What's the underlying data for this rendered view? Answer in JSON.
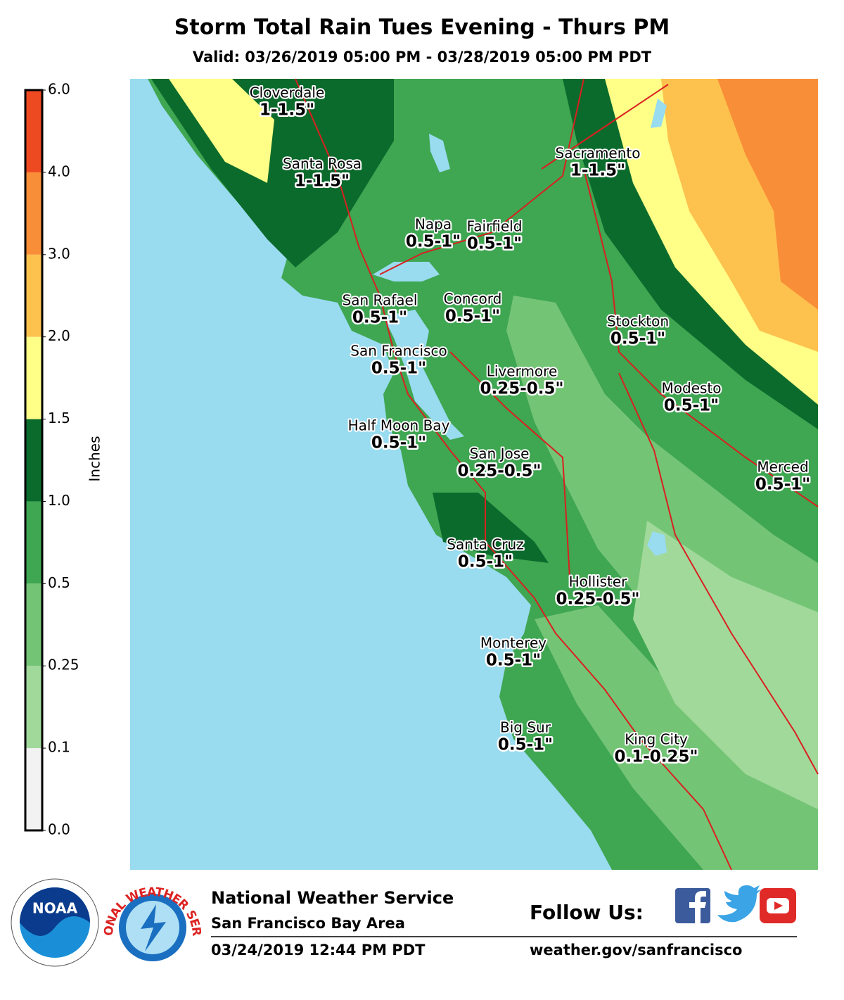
{
  "header": {
    "title": "Storm Total Rain Tues Evening - Thurs PM",
    "subtitle": "Valid: 03/26/2019 05:00 PM - 03/28/2019 05:00 PM PDT"
  },
  "legend": {
    "label": "Inches",
    "ticks": [
      {
        "value": 0,
        "label": "0.0"
      },
      0.1,
      0.25,
      0.5,
      {
        "value": 1,
        "label": "1.0"
      },
      1.5,
      {
        "value": 2,
        "label": "2.0"
      },
      {
        "value": 3,
        "label": "3.0"
      },
      {
        "value": 4,
        "label": "4.0"
      },
      {
        "value": 6,
        "label": "6.0"
      }
    ],
    "colors": [
      "#f2f2f2",
      "#a1d99b",
      "#74c476",
      "#3fa652",
      "#0b6b2c",
      "#ffff88",
      "#fdc24e",
      "#f98e38",
      "#ee4a22"
    ]
  },
  "cities": [
    {
      "name": "Cloverdale",
      "amount": "1-1.5\""
    },
    {
      "name": "Santa Rosa",
      "amount": "1-1.5\""
    },
    {
      "name": "Sacramento",
      "amount": "1-1.5\""
    },
    {
      "name": "Napa",
      "amount": "0.5-1\""
    },
    {
      "name": "Fairfield",
      "amount": "0.5-1\""
    },
    {
      "name": "San Rafael",
      "amount": "0.5-1\""
    },
    {
      "name": "Concord",
      "amount": "0.5-1\""
    },
    {
      "name": "San Francisco",
      "amount": "0.5-1\""
    },
    {
      "name": "Stockton",
      "amount": "0.5-1\""
    },
    {
      "name": "Livermore",
      "amount": "0.25-0.5\""
    },
    {
      "name": "Modesto",
      "amount": "0.5-1\""
    },
    {
      "name": "Half Moon Bay",
      "amount": "0.5-1\""
    },
    {
      "name": "San Jose",
      "amount": "0.25-0.5\""
    },
    {
      "name": "Merced",
      "amount": "0.5-1\""
    },
    {
      "name": "Santa Cruz",
      "amount": "0.5-1\""
    },
    {
      "name": "Hollister",
      "amount": "0.25-0.5\""
    },
    {
      "name": "Monterey",
      "amount": "0.5-1\""
    },
    {
      "name": "Big Sur",
      "amount": "0.5-1\""
    },
    {
      "name": "King City",
      "amount": "0.1-0.25\""
    }
  ],
  "footer": {
    "logos": [
      "NOAA",
      "NATIONAL WEATHER SERVICE"
    ],
    "office": "National Weather Service",
    "region": "San Francisco Bay Area",
    "issued": "03/24/2019 12:44 PM PDT",
    "follow": "Follow Us:",
    "url": "weather.gov/sanfrancisco"
  }
}
